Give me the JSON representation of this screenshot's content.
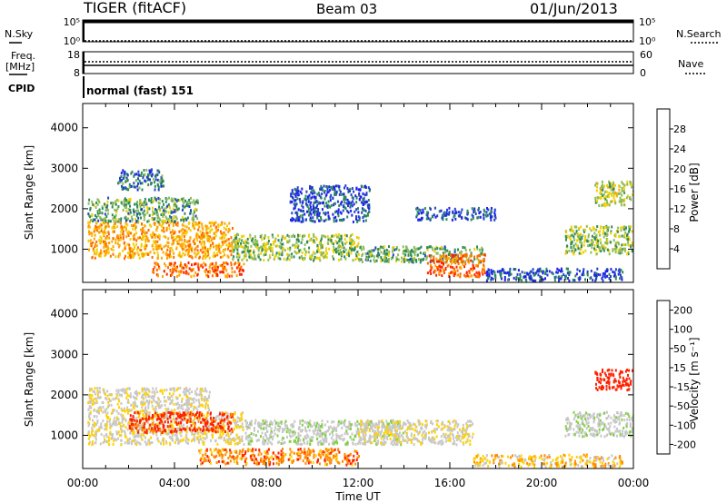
{
  "header": {
    "station": "TIGER (fitACF)",
    "beam": "Beam 03",
    "date": "01/Jun/2013"
  },
  "noise_panel": {
    "left_label": "N.Sky",
    "right_label": "N.Search",
    "left_ticks": [
      "10^5",
      "10^0"
    ],
    "right_ticks": [
      "10^5",
      "10^0"
    ]
  },
  "freq_panel": {
    "left_label": "Freq.",
    "left_unit": "[MHz]",
    "right_label": "Nave",
    "left_ticks": [
      "18",
      "8"
    ],
    "right_ticks": [
      "60",
      "0"
    ]
  },
  "cpid": {
    "label": "CPID",
    "value": "normal (fast) 151"
  },
  "chart_data": [
    {
      "type": "heatmap",
      "title": "",
      "xlabel": "Time UT",
      "ylabel": "Slant Range [km]",
      "x_ticks": [
        "00:00",
        "04:00",
        "08:00",
        "12:00",
        "16:00",
        "20:00",
        "00:00"
      ],
      "y_ticks": [
        1000,
        2000,
        3000,
        4000
      ],
      "xlim_hours": [
        0,
        24
      ],
      "ylim": [
        180,
        4600
      ],
      "colorbar": {
        "label": "Power [dB]",
        "ticks": [
          "4",
          "8",
          "12",
          "16",
          "20",
          "24",
          "28"
        ],
        "range": [
          0,
          32
        ],
        "colors": [
          "#1e1ef0",
          "#2244c8",
          "#2e8b57",
          "#8fbc5a",
          "#f0d000",
          "#ffa500",
          "#ff6a00",
          "#ff2200"
        ]
      },
      "regions": [
        {
          "t0": 0.2,
          "t1": 6.5,
          "r0": 800,
          "r1": 1700,
          "value": 22
        },
        {
          "t0": 0.2,
          "t1": 5.0,
          "r0": 1700,
          "r1": 2300,
          "value": 12
        },
        {
          "t0": 1.5,
          "t1": 3.5,
          "r0": 2500,
          "r1": 3000,
          "value": 8
        },
        {
          "t0": 3.0,
          "t1": 7.0,
          "r0": 350,
          "r1": 700,
          "value": 26
        },
        {
          "t0": 6.5,
          "t1": 12.0,
          "r0": 750,
          "r1": 1400,
          "value": 14
        },
        {
          "t0": 9.0,
          "t1": 12.5,
          "r0": 1700,
          "r1": 2600,
          "value": 6
        },
        {
          "t0": 12.0,
          "t1": 17.5,
          "r0": 700,
          "r1": 1100,
          "value": 12
        },
        {
          "t0": 15.0,
          "t1": 17.5,
          "r0": 350,
          "r1": 900,
          "value": 26
        },
        {
          "t0": 14.5,
          "t1": 18.0,
          "r0": 1750,
          "r1": 2050,
          "value": 6
        },
        {
          "t0": 17.5,
          "t1": 23.5,
          "r0": 250,
          "r1": 550,
          "value": 6
        },
        {
          "t0": 21.0,
          "t1": 24.0,
          "r0": 900,
          "r1": 1600,
          "value": 14
        },
        {
          "t0": 22.3,
          "t1": 24.0,
          "r0": 2100,
          "r1": 2700,
          "value": 16
        }
      ]
    },
    {
      "type": "heatmap",
      "title": "",
      "xlabel": "Time UT",
      "ylabel": "Slant Range [km]",
      "x_ticks": [
        "00:00",
        "04:00",
        "08:00",
        "12:00",
        "16:00",
        "20:00",
        "00:00"
      ],
      "y_ticks": [
        1000,
        2000,
        3000,
        4000
      ],
      "xlim_hours": [
        0,
        24
      ],
      "ylim": [
        180,
        4600
      ],
      "colorbar": {
        "label": "Velocity [m s^-1]",
        "ticks": [
          "200",
          "100",
          "50",
          "15",
          "-15",
          "-50",
          "-100",
          "-200"
        ],
        "colors": [
          "#1e1eb4",
          "#2e8b57",
          "#7fd040",
          "#c8c8c8",
          "#c8c8c8",
          "#ffd200",
          "#ff8c00",
          "#ff2000"
        ]
      },
      "regions": [
        {
          "t0": 0.2,
          "t1": 7.0,
          "r0": 800,
          "r1": 1600,
          "value": -5
        },
        {
          "t0": 0.2,
          "t1": 5.5,
          "r0": 1600,
          "r1": 2200,
          "value": 0
        },
        {
          "t0": 2.0,
          "t1": 6.5,
          "r0": 1100,
          "r1": 1600,
          "value": -120
        },
        {
          "t0": 5.0,
          "t1": 12.0,
          "r0": 300,
          "r1": 700,
          "value": -80
        },
        {
          "t0": 7.0,
          "t1": 14.0,
          "r0": 800,
          "r1": 1400,
          "value": 30
        },
        {
          "t0": 12.0,
          "t1": 17.0,
          "r0": 800,
          "r1": 1400,
          "value": 0
        },
        {
          "t0": 17.0,
          "t1": 23.5,
          "r0": 250,
          "r1": 550,
          "value": -40
        },
        {
          "t0": 21.0,
          "t1": 24.0,
          "r0": 1000,
          "r1": 1600,
          "value": 30
        },
        {
          "t0": 22.3,
          "t1": 24.0,
          "r0": 2150,
          "r1": 2650,
          "value": -150
        }
      ]
    }
  ]
}
